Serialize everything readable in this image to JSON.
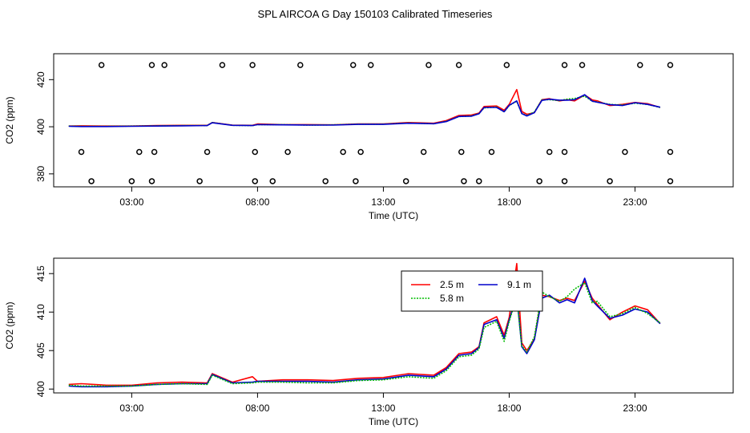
{
  "title": "SPL AIRCOA G  Day 150103  Calibrated Timeseries",
  "colors": {
    "s25": "#ff0000",
    "s58": "#00bb00",
    "s91": "#0000cc"
  },
  "chart_data": [
    {
      "type": "scatter+line",
      "xlabel": "Time (UTC)",
      "ylabel": "CO2 (ppm)",
      "x_unit": "hours UTC",
      "xlim": [
        -0.1,
        26.9
      ],
      "ylim": [
        374.5,
        431
      ],
      "xticks": [
        3,
        8,
        13,
        18,
        23
      ],
      "xtick_labels": [
        "03:00",
        "08:00",
        "13:00",
        "18:00",
        "23:00"
      ],
      "yticks": [
        380,
        400,
        420
      ],
      "ytick_labels": [
        "380",
        "400",
        "420"
      ],
      "grid": false,
      "legend": "none",
      "series": [
        {
          "name": "2.5 m",
          "color": "#ff0000",
          "x": [
            0.5,
            1,
            2,
            3,
            4,
            5,
            6,
            6.2,
            7,
            7.8,
            8,
            9,
            10,
            11,
            12,
            13,
            14,
            15,
            15.5,
            16,
            16.5,
            16.8,
            17,
            17.5,
            17.8,
            18,
            18.3,
            18.5,
            18.7,
            19,
            19.3,
            19.6,
            20,
            20.3,
            20.6,
            21,
            21.3,
            21.5,
            22,
            22.5,
            23,
            23.5,
            24
          ],
          "y": [
            400.3,
            400.4,
            400.3,
            400.3,
            400.5,
            400.6,
            400.6,
            401.8,
            400.7,
            400.6,
            401.2,
            400.9,
            400.9,
            400.8,
            401.2,
            401.2,
            401.8,
            401.5,
            402.6,
            404.8,
            405.0,
            405.8,
            408.6,
            408.8,
            407.0,
            409.5,
            415.8,
            406.5,
            405.3,
            406.0,
            411.5,
            411.9,
            411.0,
            411.5,
            411.0,
            413.5,
            411.4,
            411.0,
            409.0,
            409.5,
            410.3,
            409.8,
            408.2
          ]
        },
        {
          "name": "5.8 m",
          "color": "#00bb00",
          "x": [
            0.5,
            1,
            2,
            3,
            4,
            5,
            6,
            6.2,
            7,
            7.8,
            8,
            9,
            10,
            11,
            12,
            13,
            14,
            15,
            15.5,
            16,
            16.5,
            16.8,
            17,
            17.5,
            17.8,
            18,
            18.3,
            18.5,
            18.7,
            19,
            19.3,
            19.6,
            20,
            20.3,
            20.6,
            21,
            21.3,
            21.5,
            22,
            22.5,
            23,
            23.5,
            24
          ],
          "y": [
            400.3,
            400.2,
            400.2,
            400.3,
            400.4,
            400.5,
            400.5,
            401.8,
            400.6,
            400.5,
            400.9,
            400.9,
            400.7,
            400.8,
            401.1,
            401.1,
            401.6,
            401.3,
            402.3,
            404.3,
            404.6,
            405.6,
            408.0,
            408.4,
            406.3,
            409.0,
            410.8,
            405.6,
            404.8,
            406.3,
            411.4,
            411.5,
            411.1,
            411.7,
            412.0,
            413.0,
            410.8,
            410.5,
            409.5,
            409.2,
            410.0,
            409.5,
            408.2
          ]
        },
        {
          "name": "9.1 m",
          "color": "#0000cc",
          "x": [
            0.5,
            1,
            2,
            3,
            4,
            5,
            6,
            6.2,
            7,
            7.8,
            8,
            9,
            10,
            11,
            12,
            13,
            14,
            15,
            15.5,
            16,
            16.5,
            16.8,
            17,
            17.5,
            17.8,
            18,
            18.3,
            18.5,
            18.7,
            19,
            19.3,
            19.6,
            20,
            20.3,
            20.6,
            21,
            21.3,
            21.5,
            22,
            22.5,
            23,
            23.5,
            24
          ],
          "y": [
            400.2,
            400.1,
            400.1,
            400.2,
            400.3,
            400.4,
            400.5,
            401.7,
            400.6,
            400.5,
            400.9,
            400.8,
            400.7,
            400.7,
            401.0,
            401.0,
            401.5,
            401.3,
            402.2,
            404.4,
            404.5,
            405.5,
            408.2,
            408.2,
            406.4,
            409.1,
            411.0,
            405.6,
            404.6,
            406.0,
            411.2,
            411.7,
            411.3,
            411.3,
            411.5,
            413.6,
            410.9,
            410.4,
            409.4,
            409.0,
            410.2,
            409.5,
            408.3
          ]
        }
      ],
      "markers": {
        "symbol": "open-circle",
        "levels": [
          {
            "y": 426.2,
            "x": [
              1.8,
              3.8,
              4.3,
              6.6,
              7.8,
              9.7,
              11.8,
              12.5,
              14.8,
              16.0,
              17.9,
              20.2,
              20.9,
              23.2,
              24.4
            ]
          },
          {
            "y": 389.3,
            "x": [
              1.0,
              3.3,
              3.9,
              6.0,
              7.9,
              9.2,
              11.4,
              12.1,
              14.6,
              16.1,
              17.3,
              19.6,
              20.2,
              22.6,
              24.4
            ]
          },
          {
            "y": 376.9,
            "x": [
              1.4,
              3.0,
              3.8,
              5.7,
              7.9,
              8.6,
              10.7,
              11.9,
              13.9,
              16.2,
              16.8,
              19.2,
              20.2,
              22.0,
              24.4
            ]
          }
        ]
      }
    },
    {
      "type": "line",
      "xlabel": "Time (UTC)",
      "ylabel": "CO2 (ppm)",
      "x_unit": "hours UTC",
      "xlim": [
        -0.1,
        26.9
      ],
      "ylim": [
        399.5,
        417
      ],
      "xticks": [
        3,
        8,
        13,
        18,
        23
      ],
      "xtick_labels": [
        "03:00",
        "08:00",
        "13:00",
        "18:00",
        "23:00"
      ],
      "yticks": [
        400,
        405,
        410,
        415
      ],
      "ytick_labels": [
        "400",
        "405",
        "410",
        "415"
      ],
      "grid": false,
      "legend": "top-right",
      "legend_entries": [
        "2.5 m",
        "9.1 m",
        "5.8 m"
      ],
      "series": [
        {
          "name": "2.5 m",
          "color": "#ff0000",
          "x": [
            0.5,
            1,
            2,
            3,
            4,
            5,
            6,
            6.2,
            7,
            7.8,
            8,
            9,
            10,
            11,
            12,
            13,
            14,
            15,
            15.5,
            16,
            16.5,
            16.8,
            17,
            17.5,
            17.8,
            18,
            18.3,
            18.5,
            18.7,
            19,
            19.3,
            19.6,
            20,
            20.3,
            20.6,
            21,
            21.3,
            21.5,
            22,
            22.5,
            23,
            23.5,
            24
          ],
          "y": [
            400.6,
            400.7,
            400.5,
            400.5,
            400.8,
            400.9,
            400.8,
            402.0,
            400.9,
            401.6,
            401.0,
            401.2,
            401.2,
            401.1,
            401.4,
            401.5,
            402.0,
            401.8,
            402.8,
            404.6,
            404.8,
            405.5,
            408.6,
            409.4,
            407.0,
            409.3,
            416.3,
            406.0,
            405.0,
            406.5,
            412.2,
            412.0,
            411.5,
            411.8,
            411.5,
            414.0,
            411.8,
            411.0,
            409.0,
            410.0,
            410.8,
            410.3,
            408.5
          ]
        },
        {
          "name": "9.1 m",
          "color": "#0000cc",
          "x": [
            0.5,
            1,
            2,
            3,
            4,
            5,
            6,
            6.2,
            7,
            7.8,
            8,
            9,
            10,
            11,
            12,
            13,
            14,
            15,
            15.5,
            16,
            16.5,
            16.8,
            17,
            17.5,
            17.8,
            18,
            18.3,
            18.5,
            18.7,
            19,
            19.3,
            19.6,
            20,
            20.3,
            20.6,
            21,
            21.3,
            21.5,
            22,
            22.5,
            23,
            23.5,
            24
          ],
          "y": [
            400.4,
            400.3,
            400.3,
            400.4,
            400.6,
            400.7,
            400.7,
            401.9,
            400.8,
            400.9,
            401.0,
            401.0,
            401.0,
            400.9,
            401.2,
            401.3,
            401.8,
            401.6,
            402.6,
            404.4,
            404.6,
            405.4,
            408.4,
            409.0,
            406.6,
            409.0,
            412.1,
            405.5,
            404.6,
            406.4,
            411.8,
            412.2,
            411.2,
            411.6,
            411.2,
            414.4,
            411.5,
            410.8,
            409.2,
            409.6,
            410.4,
            410.0,
            408.5
          ]
        },
        {
          "name": "5.8 m",
          "color": "#00bb00",
          "x": [
            0.5,
            1,
            2,
            3,
            4,
            5,
            6,
            6.2,
            7,
            7.8,
            8,
            9,
            10,
            11,
            12,
            13,
            14,
            15,
            15.5,
            16,
            16.5,
            16.8,
            17,
            17.5,
            17.8,
            18,
            18.3,
            18.5,
            18.7,
            19,
            19.3,
            19.6,
            20,
            20.3,
            20.6,
            21,
            21.3,
            21.5,
            22,
            22.5,
            23,
            23.5,
            24
          ],
          "y": [
            400.5,
            400.4,
            400.4,
            400.4,
            400.6,
            400.7,
            400.6,
            401.8,
            400.7,
            400.8,
            400.9,
            400.9,
            400.8,
            400.8,
            401.1,
            401.2,
            401.6,
            401.4,
            402.4,
            404.2,
            404.4,
            405.2,
            408.0,
            408.8,
            406.2,
            408.8,
            412.0,
            405.6,
            404.8,
            406.8,
            412.6,
            412.0,
            411.4,
            412.0,
            413.0,
            413.8,
            411.2,
            411.4,
            409.4,
            409.8,
            410.6,
            409.8,
            408.6
          ]
        }
      ]
    }
  ]
}
